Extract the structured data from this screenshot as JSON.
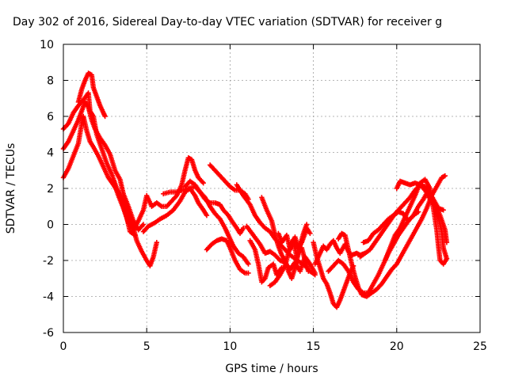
{
  "chart_data": {
    "type": "scatter",
    "title": "Day 302 of 2016, Sidereal Day-to-day VTEC variation (SDTVAR) for receiver g",
    "xlabel": "GPS time / hours",
    "ylabel": "SDTVAR / TECUs",
    "xlim": [
      0,
      25
    ],
    "ylim": [
      -6,
      10
    ],
    "xticks": [
      "0",
      "5",
      "10",
      "15",
      "20",
      "25"
    ],
    "yticks": [
      "-6",
      "-4",
      "-2",
      "0",
      "2",
      "4",
      "6",
      "8",
      "10"
    ],
    "grid": true,
    "marker": "plus",
    "color": "#ff0000",
    "tracks": [
      [
        [
          0.0,
          5.3
        ],
        [
          0.3,
          5.6
        ],
        [
          0.6,
          6.2
        ],
        [
          0.9,
          6.6
        ],
        [
          1.2,
          6.9
        ],
        [
          1.5,
          7.3
        ],
        [
          1.6,
          6.3
        ],
        [
          1.8,
          6.0
        ],
        [
          2.0,
          5.0
        ],
        [
          2.3,
          4.2
        ],
        [
          2.6,
          3.4
        ],
        [
          2.9,
          2.8
        ],
        [
          3.2,
          2.0
        ],
        [
          3.5,
          1.3
        ],
        [
          3.8,
          0.4
        ],
        [
          4.0,
          -0.4
        ],
        [
          4.3,
          -0.6
        ]
      ],
      [
        [
          0.0,
          4.2
        ],
        [
          0.3,
          4.6
        ],
        [
          0.6,
          5.2
        ],
        [
          0.9,
          5.8
        ],
        [
          1.1,
          6.3
        ],
        [
          1.3,
          6.8
        ],
        [
          1.5,
          6.5
        ],
        [
          1.7,
          5.8
        ],
        [
          1.9,
          5.3
        ],
        [
          2.2,
          4.8
        ],
        [
          2.5,
          4.4
        ],
        [
          2.8,
          3.9
        ],
        [
          3.1,
          3.0
        ],
        [
          3.4,
          2.5
        ],
        [
          3.6,
          1.7
        ],
        [
          3.9,
          1.0
        ],
        [
          4.2,
          0.2
        ],
        [
          4.5,
          -0.3
        ],
        [
          4.8,
          0.0
        ]
      ],
      [
        [
          0.0,
          2.6
        ],
        [
          0.3,
          3.1
        ],
        [
          0.6,
          3.8
        ],
        [
          0.9,
          4.5
        ],
        [
          1.1,
          5.6
        ],
        [
          1.2,
          6.0
        ],
        [
          1.4,
          5.2
        ],
        [
          1.6,
          4.6
        ],
        [
          1.8,
          4.3
        ],
        [
          2.1,
          3.8
        ],
        [
          2.4,
          3.2
        ],
        [
          2.7,
          2.6
        ],
        [
          3.0,
          2.2
        ],
        [
          3.3,
          1.8
        ],
        [
          3.6,
          1.2
        ],
        [
          3.9,
          0.6
        ],
        [
          4.2,
          -0.2
        ],
        [
          4.4,
          -0.9
        ],
        [
          4.7,
          -1.5
        ],
        [
          5.0,
          -2.0
        ],
        [
          5.2,
          -2.3
        ],
        [
          5.4,
          -1.8
        ],
        [
          5.6,
          -1.0
        ]
      ],
      [
        [
          0.9,
          6.8
        ],
        [
          1.1,
          7.5
        ],
        [
          1.3,
          8.0
        ],
        [
          1.5,
          8.4
        ],
        [
          1.7,
          8.3
        ],
        [
          1.8,
          7.6
        ],
        [
          2.0,
          7.1
        ],
        [
          2.2,
          6.6
        ],
        [
          2.4,
          6.2
        ],
        [
          2.5,
          6.0
        ]
      ],
      [
        [
          3.0,
          2.4
        ],
        [
          3.3,
          1.6
        ],
        [
          3.6,
          0.9
        ],
        [
          3.9,
          0.1
        ],
        [
          4.2,
          -0.3
        ],
        [
          4.5,
          0.2
        ],
        [
          4.8,
          0.8
        ],
        [
          5.0,
          1.6
        ],
        [
          5.3,
          1.0
        ],
        [
          5.6,
          1.2
        ],
        [
          5.9,
          1.0
        ],
        [
          6.2,
          1.0
        ],
        [
          6.5,
          1.3
        ],
        [
          6.8,
          1.6
        ],
        [
          7.1,
          2.2
        ],
        [
          7.3,
          3.0
        ],
        [
          7.5,
          3.7
        ],
        [
          7.7,
          3.6
        ],
        [
          7.9,
          3.0
        ],
        [
          8.1,
          2.6
        ],
        [
          8.4,
          2.3
        ]
      ],
      [
        [
          4.8,
          -0.4
        ],
        [
          5.1,
          -0.1
        ],
        [
          5.5,
          0.1
        ],
        [
          5.8,
          0.3
        ],
        [
          6.2,
          0.5
        ],
        [
          6.6,
          0.8
        ],
        [
          7.0,
          1.3
        ],
        [
          7.3,
          1.8
        ],
        [
          7.6,
          2.0
        ],
        [
          7.9,
          1.6
        ],
        [
          8.1,
          1.2
        ],
        [
          8.4,
          0.8
        ],
        [
          8.6,
          0.5
        ]
      ],
      [
        [
          6.0,
          1.7
        ],
        [
          6.4,
          1.8
        ],
        [
          6.8,
          1.8
        ],
        [
          7.1,
          1.9
        ],
        [
          7.5,
          2.0
        ],
        [
          7.9,
          2.1
        ],
        [
          8.2,
          1.8
        ],
        [
          8.5,
          1.4
        ],
        [
          8.8,
          1.2
        ],
        [
          9.1,
          1.2
        ],
        [
          9.4,
          1.1
        ],
        [
          9.6,
          0.8
        ],
        [
          9.9,
          0.5
        ],
        [
          10.1,
          0.2
        ],
        [
          10.4,
          -0.2
        ],
        [
          10.6,
          -0.5
        ],
        [
          10.8,
          -0.2
        ]
      ],
      [
        [
          7.3,
          2.1
        ],
        [
          7.6,
          2.4
        ],
        [
          7.9,
          2.2
        ],
        [
          8.2,
          1.8
        ],
        [
          8.5,
          1.5
        ],
        [
          8.8,
          1.0
        ],
        [
          9.1,
          0.6
        ],
        [
          9.4,
          0.3
        ],
        [
          9.7,
          -0.2
        ],
        [
          9.9,
          -0.6
        ],
        [
          10.2,
          -1.2
        ],
        [
          10.5,
          -1.6
        ],
        [
          10.8,
          -1.8
        ],
        [
          11.1,
          -2.2
        ]
      ],
      [
        [
          8.8,
          3.3
        ],
        [
          9.1,
          3.0
        ],
        [
          9.4,
          2.7
        ],
        [
          9.7,
          2.4
        ],
        [
          10.0,
          2.1
        ],
        [
          10.3,
          1.9
        ],
        [
          10.6,
          1.9
        ],
        [
          10.9,
          1.7
        ],
        [
          11.1,
          1.4
        ]
      ],
      [
        [
          8.6,
          -1.4
        ],
        [
          8.9,
          -1.1
        ],
        [
          9.2,
          -0.9
        ],
        [
          9.5,
          -0.8
        ],
        [
          9.8,
          -0.9
        ],
        [
          10.0,
          -1.3
        ],
        [
          10.3,
          -2.0
        ],
        [
          10.6,
          -2.5
        ],
        [
          10.9,
          -2.7
        ],
        [
          11.1,
          -2.7
        ]
      ],
      [
        [
          11.2,
          -0.9
        ],
        [
          11.5,
          -1.4
        ],
        [
          11.7,
          -2.2
        ],
        [
          11.9,
          -3.2
        ],
        [
          12.1,
          -3.0
        ],
        [
          12.3,
          -2.4
        ],
        [
          12.6,
          -2.2
        ],
        [
          12.8,
          -2.8
        ],
        [
          13.1,
          -2.4
        ]
      ],
      [
        [
          10.4,
          2.2
        ],
        [
          10.8,
          1.6
        ],
        [
          11.2,
          1.1
        ],
        [
          11.5,
          0.5
        ],
        [
          11.8,
          0.1
        ],
        [
          12.1,
          -0.2
        ],
        [
          12.4,
          -0.4
        ],
        [
          12.7,
          -0.8
        ],
        [
          13.0,
          -1.1
        ],
        [
          13.3,
          -1.4
        ],
        [
          13.6,
          -1.7
        ],
        [
          13.9,
          -1.9
        ],
        [
          14.2,
          -2.1
        ],
        [
          14.5,
          -2.3
        ],
        [
          14.8,
          -2.6
        ],
        [
          15.1,
          -2.8
        ]
      ],
      [
        [
          11.0,
          -0.1
        ],
        [
          11.4,
          -0.6
        ],
        [
          11.8,
          -1.1
        ],
        [
          12.1,
          -1.6
        ],
        [
          12.4,
          -1.5
        ],
        [
          12.7,
          -1.7
        ],
        [
          13.0,
          -2.0
        ],
        [
          13.3,
          -2.1
        ],
        [
          13.6,
          -2.5
        ],
        [
          13.9,
          -2.1
        ],
        [
          14.2,
          -2.6
        ],
        [
          14.5,
          -1.8
        ],
        [
          14.8,
          -2.2
        ],
        [
          15.1,
          -2.7
        ]
      ],
      [
        [
          11.9,
          1.5
        ],
        [
          12.2,
          0.8
        ],
        [
          12.5,
          0.2
        ],
        [
          12.7,
          -0.6
        ],
        [
          12.9,
          -1.2
        ],
        [
          13.1,
          -1.7
        ],
        [
          13.3,
          -2.0
        ],
        [
          13.5,
          -2.6
        ],
        [
          13.7,
          -3.0
        ],
        [
          13.9,
          -2.4
        ],
        [
          14.1,
          -1.6
        ],
        [
          14.3,
          -1.3
        ],
        [
          14.5,
          -2.0
        ],
        [
          14.7,
          -2.6
        ]
      ],
      [
        [
          12.4,
          -3.4
        ],
        [
          12.7,
          -3.2
        ],
        [
          13.0,
          -2.8
        ],
        [
          13.3,
          -2.3
        ],
        [
          13.5,
          -1.6
        ],
        [
          13.7,
          -1.0
        ],
        [
          13.9,
          -0.7
        ],
        [
          14.1,
          -1.3
        ],
        [
          14.3,
          -1.0
        ],
        [
          14.5,
          -0.5
        ],
        [
          14.6,
          -0.2
        ],
        [
          14.8,
          -0.5
        ]
      ],
      [
        [
          12.9,
          -0.5
        ],
        [
          13.1,
          -1.0
        ],
        [
          13.4,
          -0.6
        ],
        [
          13.6,
          -1.4
        ],
        [
          13.8,
          -0.9
        ],
        [
          14.0,
          -1.8
        ],
        [
          14.2,
          -1.2
        ],
        [
          14.4,
          -0.5
        ],
        [
          14.6,
          0.0
        ]
      ],
      [
        [
          15.1,
          -2.2
        ],
        [
          15.4,
          -1.6
        ],
        [
          15.6,
          -1.2
        ],
        [
          15.8,
          -1.4
        ],
        [
          16.0,
          -1.1
        ],
        [
          16.2,
          -0.9
        ],
        [
          16.4,
          -1.3
        ],
        [
          16.6,
          -1.6
        ],
        [
          16.9,
          -1.1
        ],
        [
          17.1,
          -1.5
        ],
        [
          17.3,
          -1.7
        ],
        [
          17.6,
          -1.6
        ],
        [
          17.8,
          -1.7
        ],
        [
          18.1,
          -1.6
        ]
      ],
      [
        [
          15.0,
          -1.0
        ],
        [
          15.2,
          -1.8
        ],
        [
          15.4,
          -2.4
        ],
        [
          15.6,
          -3.0
        ],
        [
          15.8,
          -3.3
        ],
        [
          16.0,
          -3.8
        ],
        [
          16.2,
          -4.4
        ],
        [
          16.4,
          -4.6
        ],
        [
          16.6,
          -4.2
        ],
        [
          16.8,
          -3.7
        ],
        [
          17.0,
          -3.2
        ],
        [
          17.2,
          -2.7
        ],
        [
          17.4,
          -2.3
        ]
      ],
      [
        [
          16.5,
          -0.8
        ],
        [
          16.7,
          -0.5
        ],
        [
          16.9,
          -0.6
        ],
        [
          17.1,
          -1.4
        ],
        [
          17.3,
          -2.2
        ],
        [
          17.5,
          -2.9
        ],
        [
          17.7,
          -3.5
        ],
        [
          17.9,
          -3.9
        ],
        [
          18.2,
          -4.0
        ],
        [
          18.5,
          -3.8
        ],
        [
          18.8,
          -3.6
        ],
        [
          19.1,
          -3.3
        ],
        [
          19.4,
          -2.9
        ],
        [
          19.7,
          -2.5
        ],
        [
          20.0,
          -2.2
        ],
        [
          20.3,
          -1.7
        ],
        [
          20.6,
          -1.2
        ],
        [
          20.9,
          -0.7
        ],
        [
          21.2,
          -0.2
        ],
        [
          21.5,
          0.3
        ],
        [
          21.8,
          0.9
        ],
        [
          22.1,
          1.6
        ],
        [
          22.4,
          2.1
        ],
        [
          22.7,
          2.6
        ],
        [
          22.9,
          2.7
        ]
      ],
      [
        [
          15.9,
          -2.6
        ],
        [
          16.2,
          -2.3
        ],
        [
          16.5,
          -2.0
        ],
        [
          16.8,
          -2.2
        ],
        [
          17.1,
          -2.6
        ],
        [
          17.4,
          -3.2
        ],
        [
          17.7,
          -3.6
        ],
        [
          18.0,
          -3.8
        ],
        [
          18.3,
          -3.8
        ],
        [
          18.6,
          -3.3
        ],
        [
          18.9,
          -2.8
        ],
        [
          19.2,
          -2.2
        ],
        [
          19.5,
          -1.6
        ],
        [
          19.8,
          -1.1
        ],
        [
          20.1,
          -0.6
        ],
        [
          20.4,
          -0.2
        ],
        [
          20.7,
          0.2
        ],
        [
          21.0,
          0.5
        ],
        [
          21.3,
          0.7
        ]
      ],
      [
        [
          17.8,
          -1.8
        ],
        [
          18.1,
          -1.6
        ],
        [
          18.4,
          -1.4
        ],
        [
          18.7,
          -1.0
        ],
        [
          19.0,
          -0.6
        ],
        [
          19.3,
          -0.2
        ],
        [
          19.6,
          0.2
        ],
        [
          19.9,
          0.6
        ],
        [
          20.2,
          0.9
        ],
        [
          20.5,
          1.2
        ],
        [
          20.8,
          1.5
        ],
        [
          21.1,
          1.9
        ],
        [
          21.4,
          2.2
        ],
        [
          21.7,
          2.1
        ],
        [
          22.0,
          1.7
        ],
        [
          22.3,
          1.1
        ],
        [
          22.6,
          0.5
        ],
        [
          22.9,
          -0.3
        ],
        [
          23.0,
          -1.0
        ]
      ],
      [
        [
          18.0,
          -1.0
        ],
        [
          18.3,
          -0.9
        ],
        [
          18.6,
          -0.5
        ],
        [
          18.9,
          -0.3
        ],
        [
          19.2,
          0.0
        ],
        [
          19.5,
          0.3
        ],
        [
          19.8,
          0.5
        ],
        [
          20.1,
          0.7
        ],
        [
          20.4,
          0.6
        ],
        [
          20.7,
          0.2
        ],
        [
          21.0,
          0.5
        ],
        [
          21.3,
          1.0
        ],
        [
          21.6,
          1.4
        ],
        [
          21.9,
          1.9
        ],
        [
          22.2,
          1.4
        ],
        [
          22.5,
          0.9
        ],
        [
          22.8,
          0.8
        ]
      ],
      [
        [
          20.0,
          2.0
        ],
        [
          20.2,
          2.4
        ],
        [
          20.5,
          2.3
        ],
        [
          20.8,
          2.2
        ],
        [
          21.1,
          2.3
        ],
        [
          21.4,
          2.2
        ],
        [
          21.7,
          1.9
        ],
        [
          22.0,
          1.4
        ],
        [
          22.3,
          1.0
        ],
        [
          22.5,
          0.4
        ],
        [
          22.7,
          -0.4
        ],
        [
          22.8,
          -1.3
        ],
        [
          23.0,
          -1.9
        ]
      ],
      [
        [
          19.3,
          -2.0
        ],
        [
          19.6,
          -1.3
        ],
        [
          19.9,
          -0.6
        ],
        [
          20.2,
          -0.2
        ],
        [
          20.5,
          0.4
        ],
        [
          20.8,
          1.0
        ],
        [
          21.1,
          1.6
        ],
        [
          21.4,
          2.3
        ],
        [
          21.7,
          2.5
        ],
        [
          22.0,
          2.0
        ],
        [
          22.2,
          0.9
        ],
        [
          22.4,
          -0.3
        ],
        [
          22.5,
          -1.2
        ],
        [
          22.6,
          -2.0
        ],
        [
          22.8,
          -2.2
        ],
        [
          23.0,
          -1.9
        ]
      ]
    ]
  }
}
